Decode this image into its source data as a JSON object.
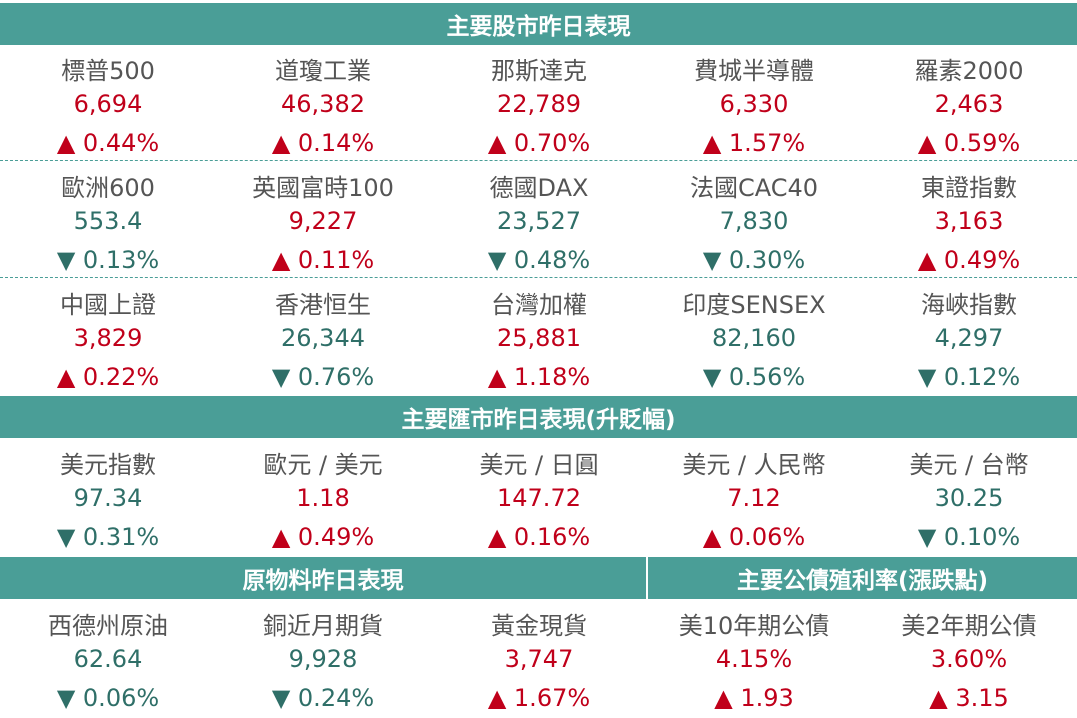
{
  "headers": {
    "stocks": "主要股市昨日表現",
    "fx": "主要匯市昨日表現(升貶幅)",
    "commodities": "原物料昨日表現",
    "bonds": "主要公債殖利率(漲跌點)"
  },
  "colors": {
    "header_bg": "#4a9e97",
    "up": "#c0001a",
    "down": "#2f6f68"
  },
  "stock_rows": [
    [
      {
        "name": "標普500",
        "value": "6,694",
        "change": "▲ 0.44%",
        "dir": "up"
      },
      {
        "name": "道瓊工業",
        "value": "46,382",
        "change": "▲ 0.14%",
        "dir": "up"
      },
      {
        "name": "那斯達克",
        "value": "22,789",
        "change": "▲ 0.70%",
        "dir": "up"
      },
      {
        "name": "費城半導體",
        "value": "6,330",
        "change": "▲ 1.57%",
        "dir": "up"
      },
      {
        "name": "羅素2000",
        "value": "2,463",
        "change": "▲ 0.59%",
        "dir": "up"
      }
    ],
    [
      {
        "name": "歐洲600",
        "value": "553.4",
        "change": "▼ 0.13%",
        "dir": "down"
      },
      {
        "name": "英國富時100",
        "value": "9,227",
        "change": "▲ 0.11%",
        "dir": "up"
      },
      {
        "name": "德國DAX",
        "value": "23,527",
        "change": "▼ 0.48%",
        "dir": "down"
      },
      {
        "name": "法國CAC40",
        "value": "7,830",
        "change": "▼ 0.30%",
        "dir": "down"
      },
      {
        "name": "東證指數",
        "value": "3,163",
        "change": "▲ 0.49%",
        "dir": "up"
      }
    ],
    [
      {
        "name": "中國上證",
        "value": "3,829",
        "change": "▲ 0.22%",
        "dir": "up"
      },
      {
        "name": "香港恒生",
        "value": "26,344",
        "change": "▼ 0.76%",
        "dir": "down"
      },
      {
        "name": "台灣加權",
        "value": "25,881",
        "change": "▲ 1.18%",
        "dir": "up"
      },
      {
        "name": "印度SENSEX",
        "value": "82,160",
        "change": "▼ 0.56%",
        "dir": "down"
      },
      {
        "name": "海峽指數",
        "value": "4,297",
        "change": "▼ 0.12%",
        "dir": "down"
      }
    ]
  ],
  "fx_row": [
    {
      "name": "美元指數",
      "value": "97.34",
      "change": "▼ 0.31%",
      "dir": "down"
    },
    {
      "name": "歐元 / 美元",
      "value": "1.18",
      "change": "▲ 0.49%",
      "dir": "up"
    },
    {
      "name": "美元 / 日圓",
      "value": "147.72",
      "change": "▲ 0.16%",
      "dir": "up"
    },
    {
      "name": "美元 / 人民幣",
      "value": "7.12",
      "change": "▲ 0.06%",
      "dir": "up"
    },
    {
      "name": "美元 / 台幣",
      "value": "30.25",
      "change": "▼ 0.10%",
      "dir": "down"
    }
  ],
  "bottom_row": [
    {
      "name": "西德州原油",
      "value": "62.64",
      "change": "▼ 0.06%",
      "dir": "down"
    },
    {
      "name": "銅近月期貨",
      "value": "9,928",
      "change": "▼ 0.24%",
      "dir": "down"
    },
    {
      "name": "黃金現貨",
      "value": "3,747",
      "change": "▲ 1.67%",
      "dir": "up"
    },
    {
      "name": "美10年期公債",
      "value": "4.15%",
      "change": "▲ 1.93",
      "dir": "up"
    },
    {
      "name": "美2年期公債",
      "value": "3.60%",
      "change": "▲ 3.15",
      "dir": "up"
    }
  ]
}
